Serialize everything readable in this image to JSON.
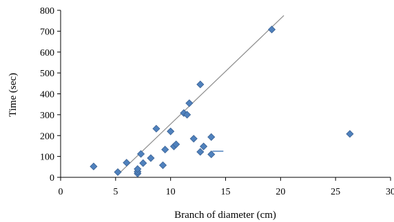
{
  "chart_data": {
    "type": "scatter",
    "title": "",
    "xlabel": "Branch of diameter (cm)",
    "ylabel": "Time (sec)",
    "xlim": [
      0,
      30
    ],
    "ylim": [
      0,
      800
    ],
    "x_ticks": [
      0,
      5,
      10,
      15,
      20,
      25,
      30
    ],
    "y_ticks": [
      0,
      100,
      200,
      300,
      400,
      500,
      600,
      700,
      800
    ],
    "grid": false,
    "legend": "none",
    "marker": "diamond",
    "colors": {
      "marker": "#4f81bd",
      "marker_edge": "#3a6193",
      "trendline": "#8c8c8c",
      "axis": "#000000"
    },
    "series": [
      {
        "points": [
          [
            3,
            52
          ],
          [
            5.2,
            25
          ],
          [
            6,
            70
          ],
          [
            7,
            18
          ],
          [
            7,
            27
          ],
          [
            7,
            40
          ],
          [
            7.3,
            112
          ],
          [
            7.5,
            68
          ],
          [
            8.2,
            92
          ],
          [
            8.7,
            233
          ],
          [
            9.3,
            58
          ],
          [
            9.5,
            133
          ],
          [
            10,
            220
          ],
          [
            10.3,
            148
          ],
          [
            10.5,
            158
          ],
          [
            11.2,
            308
          ],
          [
            11.5,
            300
          ],
          [
            11.7,
            355
          ],
          [
            12.1,
            185
          ],
          [
            12.7,
            445
          ],
          [
            12.7,
            122
          ],
          [
            13,
            148
          ],
          [
            13.7,
            193
          ],
          [
            13.7,
            110
          ],
          [
            19.2,
            708
          ],
          [
            26.3,
            208
          ]
        ]
      }
    ],
    "trendline": {
      "x": [
        5.3,
        20.3
      ],
      "y": [
        18,
        775
      ]
    },
    "annotations": [
      {
        "type": "short-line",
        "x": [
          13.8,
          14.8
        ],
        "y": [
          125,
          125
        ]
      }
    ]
  }
}
